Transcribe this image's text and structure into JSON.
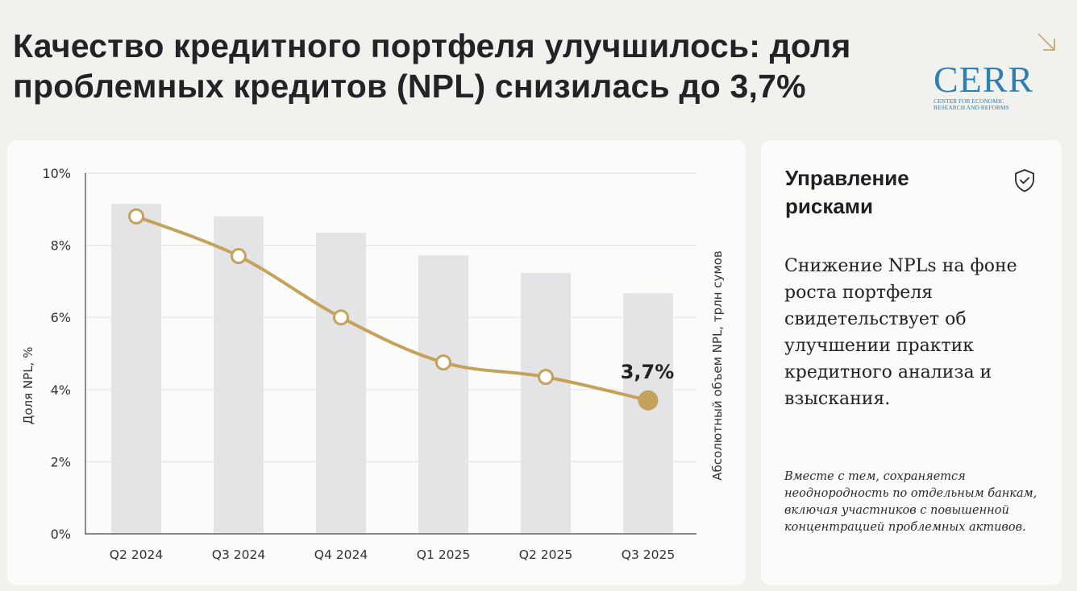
{
  "header": {
    "title": "Качество кредитного портфеля улучшилось: доля проблемных кредитов (NPL) снизилась до 3,7%",
    "corner_icon": "arrow-down-right-icon",
    "logo": {
      "name": "CERR",
      "subtitle": "CENTER FOR ECONOMIC\nRESEARCH AND REFORMS"
    }
  },
  "colors": {
    "line": "#c4a25b",
    "bars": "#e4e4e6",
    "logo": "#2f7fb0",
    "background": "#f1f1ee"
  },
  "chart_data": {
    "type": "bar+line",
    "categories": [
      "Q2 2024",
      "Q3 2024",
      "Q4 2024",
      "Q1 2025",
      "Q2 2025",
      "Q3 2025"
    ],
    "series": [
      {
        "name": "Абсолютный объем NPL, трлн сумов",
        "type": "bar",
        "axis": "right",
        "values": [
          9.15,
          8.8,
          8.35,
          7.72,
          7.23,
          6.67
        ]
      },
      {
        "name": "Доля NPL, %",
        "type": "line",
        "axis": "left",
        "values": [
          8.8,
          7.7,
          6.0,
          4.75,
          4.35,
          3.7
        ]
      }
    ],
    "ylabel": "Доля NPL, %",
    "y2label": "Абсолютный объем NPL, трлн сумов",
    "ylim": [
      0,
      10
    ],
    "yticks": [
      0,
      2,
      4,
      6,
      8,
      10
    ],
    "ytick_labels": [
      "0%",
      "2%",
      "4%",
      "6%",
      "8%",
      "10%"
    ],
    "grid": true,
    "annotation": {
      "text": "3,7%",
      "category": "Q3 2025"
    }
  },
  "side": {
    "title": "Управление рисками",
    "icon": "shield-check-icon",
    "main_text": "Снижение NPLs на фоне роста портфеля свидетельствует об улучшении практик кредитного анализа и взыскания.",
    "note": "Вместе с тем, сохраняется неоднородность по отдельным банкам, включая участников с повышенной концентрацией проблемных активов."
  }
}
